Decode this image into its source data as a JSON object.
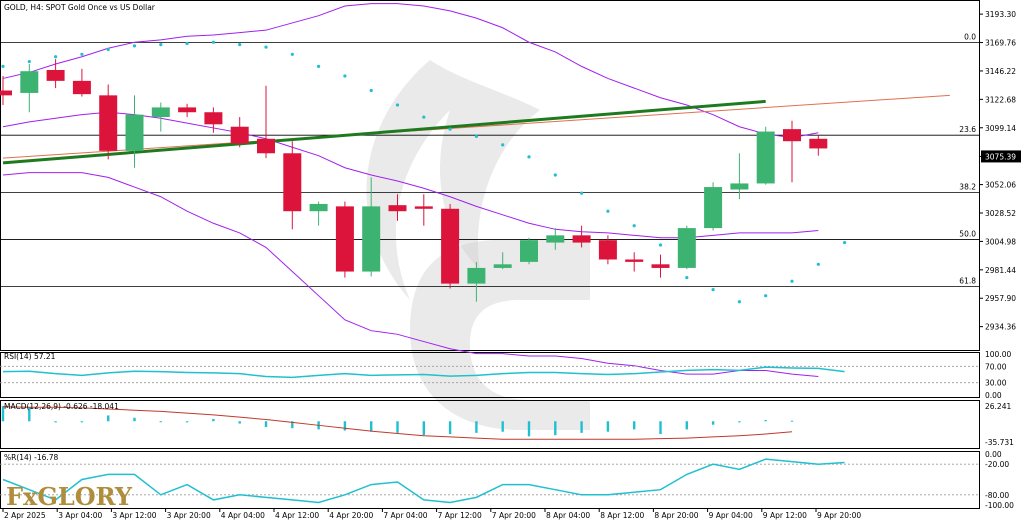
{
  "header": {
    "title": "GOLD, H4:  SPOT Gold Once vs US Dollar"
  },
  "brand": {
    "logo_text": "FxGLORY"
  },
  "colors": {
    "bull": "#3cb371",
    "bear": "#dc143c",
    "bollinger": "#a020f0",
    "trend_green": "#1f7a1f",
    "trend_red": "#e07050",
    "rsi": "#20c0d0",
    "macd_signal": "#c0392b",
    "macd_hist": "#20c0d0",
    "wpr": "#20c0d0",
    "sar": "#20c0d0",
    "watermark": "#d0d0d0"
  },
  "main_panel": {
    "price_range": [
      2915,
      3205
    ],
    "y_ticks": [
      "3193.30",
      "3169.76",
      "3146.22",
      "3122.68",
      "3099.14",
      "3075.39",
      "3052.06",
      "3028.52",
      "3004.98",
      "2981.44",
      "2957.90",
      "2934.36"
    ],
    "current_price": "3075.39",
    "fib_levels": [
      {
        "label": "0.0",
        "price": 3169.76
      },
      {
        "label": "23.6",
        "price": 3093.0
      },
      {
        "label": "38.2",
        "price": 3045.5
      },
      {
        "label": "50.0",
        "price": 3006.5
      },
      {
        "label": "61.8",
        "price": 2967.5
      }
    ]
  },
  "x_axis": {
    "labels": [
      "2 Apr 2025",
      "3 Apr 04:00",
      "3 Apr 12:00",
      "3 Apr 20:00",
      "4 Apr 04:00",
      "4 Apr 12:00",
      "4 Apr 20:00",
      "7 Apr 04:00",
      "7 Apr 12:00",
      "7 Apr 20:00",
      "8 Apr 04:00",
      "8 Apr 12:00",
      "8 Apr 20:00",
      "9 Apr 04:00",
      "9 Apr 12:00",
      "9 Apr 20:00"
    ]
  },
  "rsi_panel": {
    "label": "RSI(14) 57.21",
    "y_ticks": [
      "100.00",
      "70.00",
      "30.00",
      "0.00"
    ]
  },
  "macd_panel": {
    "label": "MACD(12,26,9) -0.626 -18.041",
    "y_ticks": [
      "26.241",
      "-35.731"
    ]
  },
  "wpr_panel": {
    "label": "%R(14) -16.78",
    "y_ticks": [
      "0.00",
      "-20.00",
      "-80.00",
      "-100.00"
    ]
  },
  "chart_data": {
    "type": "candlestick",
    "title": "GOLD, H4:  SPOT Gold Once vs US Dollar",
    "candles": [
      {
        "o": 3130,
        "h": 3142,
        "l": 3118,
        "c": 3126
      },
      {
        "o": 3128,
        "h": 3152,
        "l": 3112,
        "c": 3146
      },
      {
        "o": 3147,
        "h": 3156,
        "l": 3132,
        "c": 3138
      },
      {
        "o": 3138,
        "h": 3148,
        "l": 3125,
        "c": 3127
      },
      {
        "o": 3126,
        "h": 3135,
        "l": 3073,
        "c": 3080
      },
      {
        "o": 3080,
        "h": 3126,
        "l": 3066,
        "c": 3110
      },
      {
        "o": 3108,
        "h": 3120,
        "l": 3096,
        "c": 3116
      },
      {
        "o": 3116,
        "h": 3119,
        "l": 3108,
        "c": 3112
      },
      {
        "o": 3112,
        "h": 3116,
        "l": 3095,
        "c": 3102
      },
      {
        "o": 3100,
        "h": 3108,
        "l": 3083,
        "c": 3086
      },
      {
        "o": 3090,
        "h": 3134,
        "l": 3074,
        "c": 3078
      },
      {
        "o": 3078,
        "h": 3088,
        "l": 3015,
        "c": 3030
      },
      {
        "o": 3030,
        "h": 3038,
        "l": 3018,
        "c": 3036
      },
      {
        "o": 3034,
        "h": 3038,
        "l": 2975,
        "c": 2980
      },
      {
        "o": 2980,
        "h": 3058,
        "l": 2976,
        "c": 3034
      },
      {
        "o": 3035,
        "h": 3044,
        "l": 3022,
        "c": 3030
      },
      {
        "o": 3034,
        "h": 3044,
        "l": 3018,
        "c": 3032
      },
      {
        "o": 3032,
        "h": 3036,
        "l": 2966,
        "c": 2970
      },
      {
        "o": 2970,
        "h": 2988,
        "l": 2955,
        "c": 2983
      },
      {
        "o": 2983,
        "h": 2996,
        "l": 2982,
        "c": 2986
      },
      {
        "o": 2988,
        "h": 3008,
        "l": 2986,
        "c": 3006
      },
      {
        "o": 3004,
        "h": 3016,
        "l": 2998,
        "c": 3010
      },
      {
        "o": 3010,
        "h": 3018,
        "l": 3000,
        "c": 3004
      },
      {
        "o": 3006,
        "h": 3010,
        "l": 2986,
        "c": 2990
      },
      {
        "o": 2990,
        "h": 2996,
        "l": 2980,
        "c": 2988
      },
      {
        "o": 2986,
        "h": 2994,
        "l": 2975,
        "c": 2983
      },
      {
        "o": 2983,
        "h": 3018,
        "l": 2982,
        "c": 3016
      },
      {
        "o": 3016,
        "h": 3054,
        "l": 3014,
        "c": 3050
      },
      {
        "o": 3048,
        "h": 3078,
        "l": 3040,
        "c": 3053
      },
      {
        "o": 3053,
        "h": 3100,
        "l": 3052,
        "c": 3096
      },
      {
        "o": 3098,
        "h": 3105,
        "l": 3054,
        "c": 3088
      },
      {
        "o": 3090,
        "h": 3093,
        "l": 3076,
        "c": 3082
      }
    ],
    "bollinger_upper": [
      3140,
      3145,
      3152,
      3158,
      3165,
      3170,
      3172,
      3175,
      3176,
      3178,
      3180,
      3186,
      3192,
      3200,
      3202,
      3202,
      3200,
      3196,
      3190,
      3182,
      3170,
      3162,
      3150,
      3140,
      3132,
      3124,
      3118,
      3110,
      3100,
      3094,
      3091,
      3095
    ],
    "bollinger_middle": [
      3100,
      3104,
      3107,
      3110,
      3112,
      3110,
      3107,
      3103,
      3099,
      3095,
      3090,
      3083,
      3076,
      3066,
      3060,
      3055,
      3049,
      3042,
      3034,
      3027,
      3020,
      3015,
      3013,
      3012,
      3010,
      3008,
      3008,
      3010,
      3012,
      3012,
      3012,
      3014
    ],
    "bollinger_lower": [
      3060,
      3062,
      3062,
      3062,
      3058,
      3050,
      3042,
      3030,
      3020,
      3012,
      3000,
      2980,
      2960,
      2940,
      2931,
      2928,
      2922,
      2916,
      2912,
      2912,
      2910,
      2910,
      2908,
      2904,
      2902,
      2898,
      2895,
      2895,
      2898,
      2898,
      2895,
      2893
    ],
    "parabolic_sar": [
      3150,
      3154,
      3158,
      3160,
      3164,
      3167,
      3168,
      3169,
      3170,
      3168,
      3166,
      3160,
      3150,
      3142,
      3130,
      3118,
      3108,
      3098,
      3092,
      3085,
      3075,
      3060,
      3045,
      3030,
      3018,
      3002,
      2975,
      2965,
      2955,
      2960,
      2972,
      2986,
      3004
    ],
    "trendline_green": {
      "from": [
        0,
        3070
      ],
      "to": [
        29,
        3121
      ]
    },
    "trendline_red": {
      "from": [
        0,
        3074
      ],
      "to": [
        36,
        3126
      ]
    },
    "rsi": [
      57,
      58,
      52,
      48,
      54,
      58,
      57,
      55,
      54,
      52,
      45,
      43,
      48,
      52,
      48,
      49,
      50,
      46,
      48,
      52,
      55,
      55,
      52,
      50,
      52,
      56,
      60,
      62,
      60,
      68,
      66,
      65,
      57
    ],
    "macd_signal": [
      25,
      24,
      24,
      23,
      21,
      19,
      17,
      14,
      11,
      7,
      3,
      -2,
      -7,
      -12,
      -17,
      -21,
      -25,
      -27,
      -29,
      -31,
      -31,
      -31,
      -31,
      -31,
      -31,
      -30,
      -29,
      -27,
      -25,
      -22,
      -18
    ],
    "macd_hist": [
      26,
      24,
      -2,
      -2,
      10,
      6,
      0,
      -2,
      4,
      -4,
      -10,
      -12,
      -14,
      -16,
      -18,
      -20,
      -24,
      -22,
      -20,
      -18,
      -26,
      -24,
      -20,
      -18,
      -14,
      -22,
      -14,
      -6,
      -2,
      2,
      1
    ],
    "wpr": [
      -50,
      -70,
      -90,
      -50,
      -40,
      -40,
      -80,
      -60,
      -90,
      -80,
      -85,
      -90,
      -95,
      -80,
      -60,
      -55,
      -90,
      -95,
      -85,
      -60,
      -60,
      -70,
      -80,
      -80,
      -75,
      -70,
      -40,
      -20,
      -30,
      -10,
      -15,
      -20,
      -16.78
    ]
  }
}
